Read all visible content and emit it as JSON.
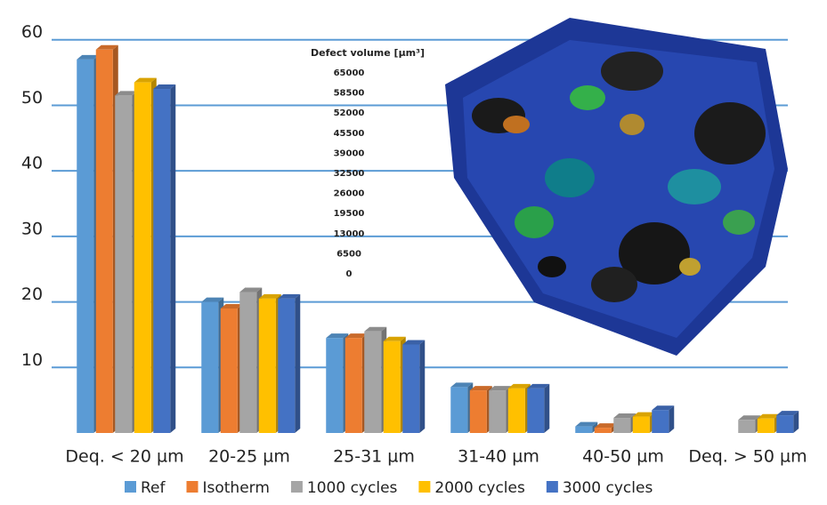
{
  "chart_data": {
    "type": "bar",
    "categories": [
      "Deq. < 20 µm",
      "20-25 µm",
      "25-31 µm",
      "31-40 µm",
      "40-50 µm",
      "Deq. > 50 µm"
    ],
    "series": [
      {
        "name": "Ref",
        "color": "#5b9bd5",
        "values": [
          57,
          20,
          14.5,
          7,
          1,
          null
        ]
      },
      {
        "name": "Isotherm",
        "color": "#ed7d31",
        "values": [
          58.5,
          19,
          14.5,
          6.5,
          0.8,
          null
        ]
      },
      {
        "name": "1000 cycles",
        "color": "#a5a5a5",
        "values": [
          51.5,
          21.5,
          15.5,
          6.5,
          2.3,
          2
        ]
      },
      {
        "name": "2000 cycles",
        "color": "#ffc000",
        "values": [
          53.5,
          20.5,
          14,
          6.8,
          2.5,
          2.2
        ]
      },
      {
        "name": "3000 cycles",
        "color": "#4472c4",
        "values": [
          52.5,
          20.5,
          13.5,
          6.8,
          3.5,
          2.7
        ]
      }
    ],
    "ylim": [
      0,
      62
    ],
    "yticks": [
      10,
      20,
      30,
      40,
      50,
      60
    ],
    "grid": true,
    "legend": "bottom",
    "annotation": "Defect volume [µm³]",
    "colorbar_ticks": [
      65000,
      58500,
      52000,
      45500,
      39000,
      32500,
      26000,
      19500,
      13000,
      6500,
      0
    ]
  }
}
